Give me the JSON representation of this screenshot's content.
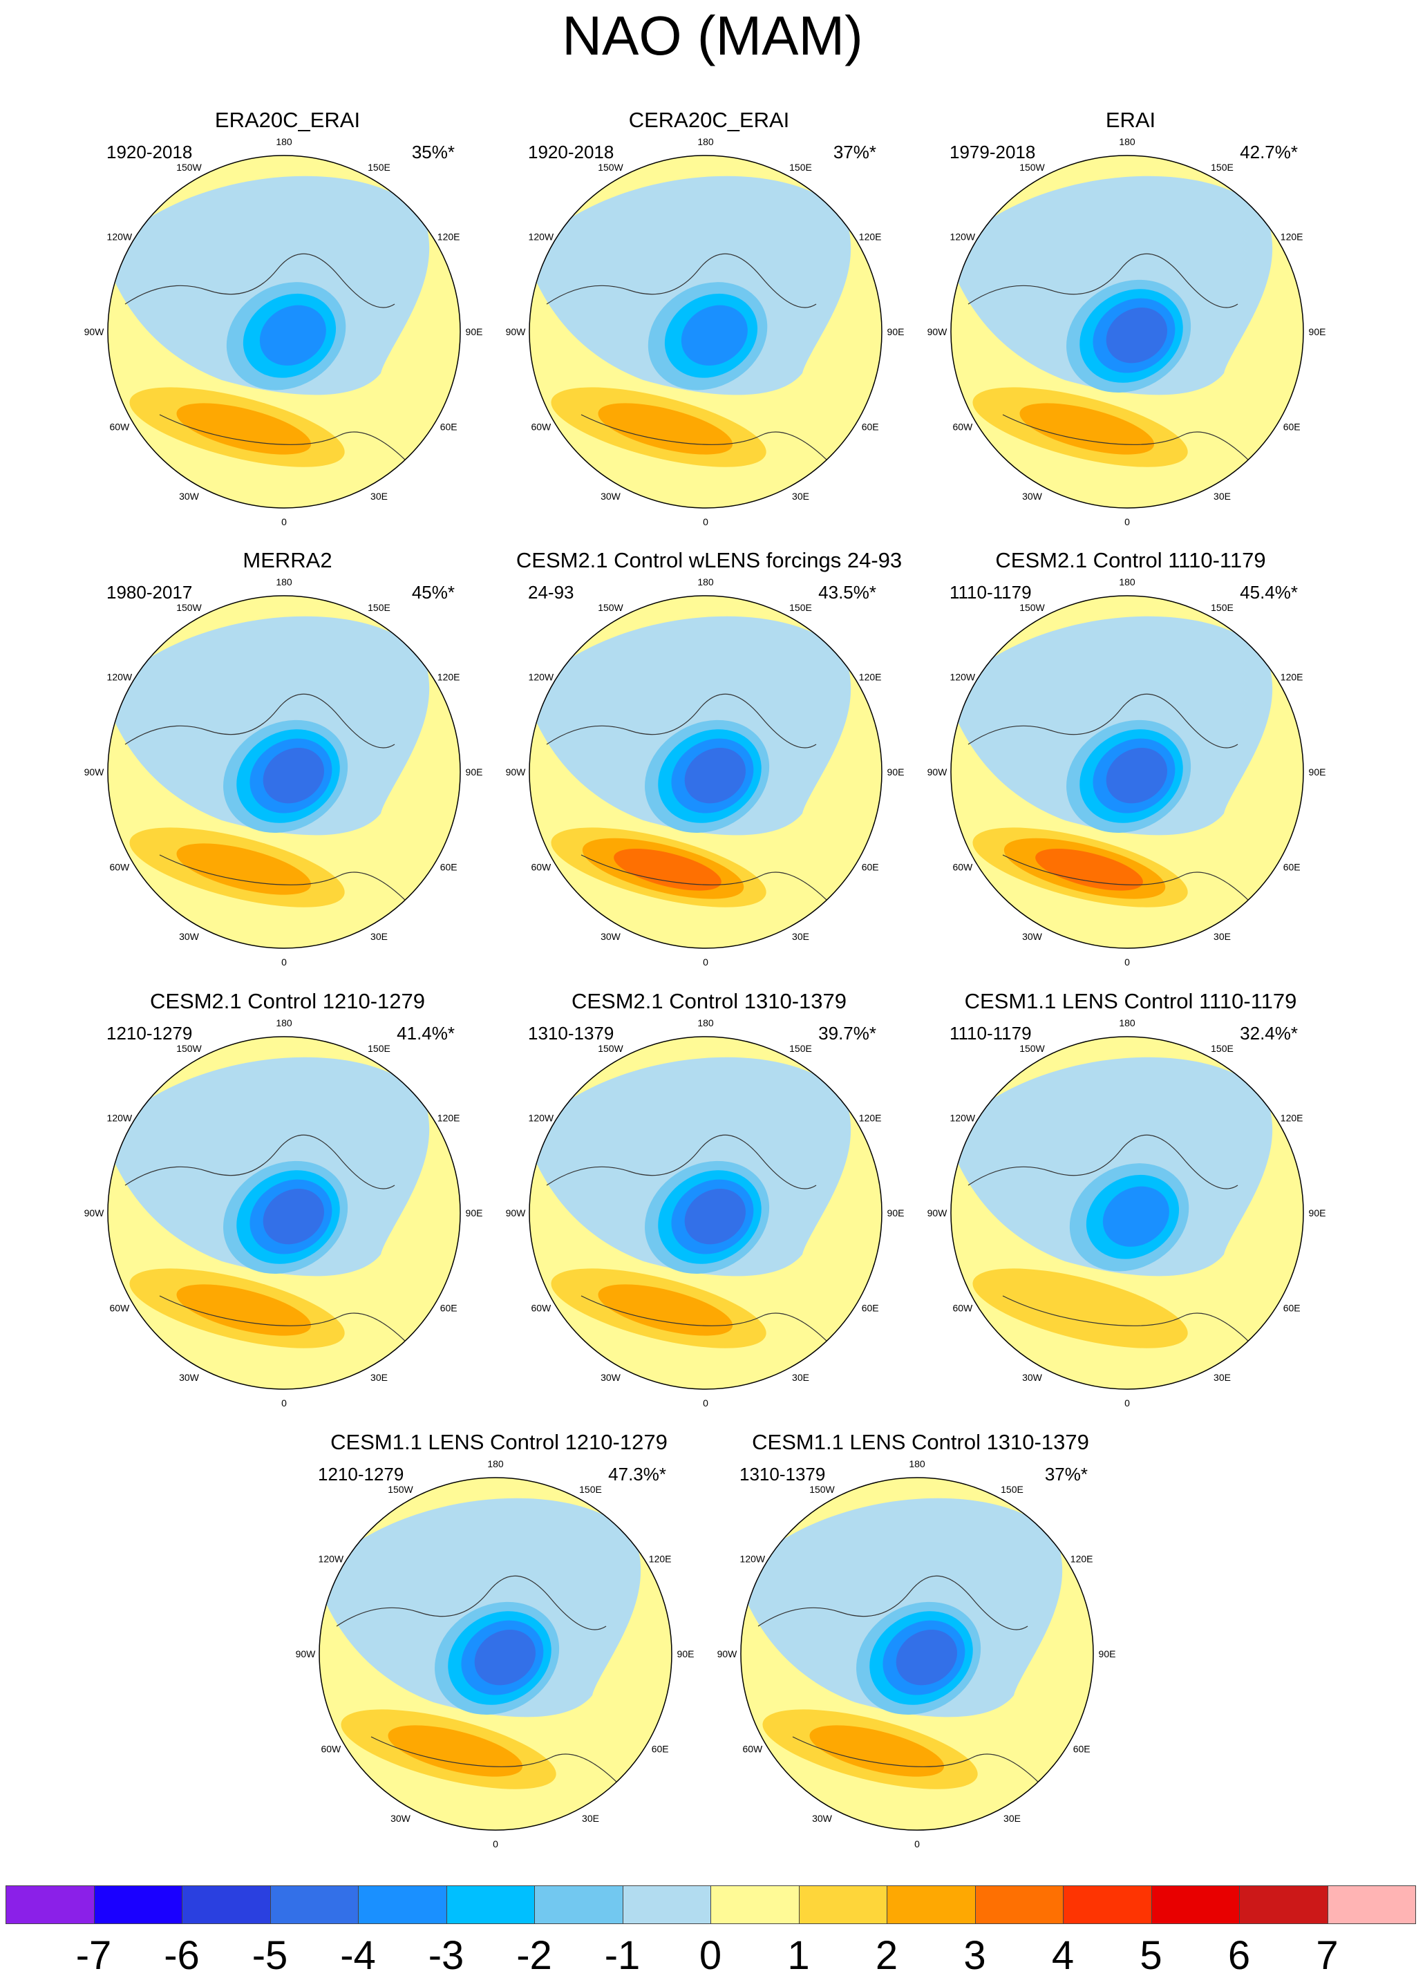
{
  "title": "NAO (MAM)",
  "chart_data": {
    "type": "polar-map",
    "projection": "north polar stereographic",
    "longitude_labels": [
      "180",
      "150E",
      "120E",
      "90E",
      "60E",
      "30E",
      "0",
      "30W",
      "60W",
      "90W",
      "120W",
      "150W"
    ],
    "panels": [
      {
        "title": "ERA20C_ERAI",
        "period": "1920-2018",
        "percent": "35%*",
        "low_peak": -4,
        "high_peak": 2
      },
      {
        "title": "CERA20C_ERAI",
        "period": "1920-2018",
        "percent": "37%*",
        "low_peak": -4,
        "high_peak": 2
      },
      {
        "title": "ERAI",
        "period": "1979-2018",
        "percent": "42.7%*",
        "low_peak": -5,
        "high_peak": 2
      },
      {
        "title": "MERRA2",
        "period": "1980-2017",
        "percent": "45%*",
        "low_peak": -5,
        "high_peak": 2
      },
      {
        "title": "CESM2.1 Control wLENS forcings 24-93",
        "period": "24-93",
        "percent": "43.5%*",
        "low_peak": -5,
        "high_peak": 3
      },
      {
        "title": "CESM2.1 Control 1110-1179",
        "period": "1110-1179",
        "percent": "45.4%*",
        "low_peak": -5,
        "high_peak": 3
      },
      {
        "title": "CESM2.1 Control 1210-1279",
        "period": "1210-1279",
        "percent": "41.4%*",
        "low_peak": -5,
        "high_peak": 2
      },
      {
        "title": "CESM2.1 Control 1310-1379",
        "period": "1310-1379",
        "percent": "39.7%*",
        "low_peak": -5,
        "high_peak": 2
      },
      {
        "title": "CESM1.1 LENS Control 1110-1179",
        "period": "1110-1179",
        "percent": "32.4%*",
        "low_peak": -4,
        "high_peak": 1
      },
      {
        "title": "CESM1.1 LENS Control 1210-1279",
        "period": "1210-1279",
        "percent": "47.3%*",
        "low_peak": -5,
        "high_peak": 2
      },
      {
        "title": "CESM1.1 LENS Control 1310-1379",
        "period": "1310-1379",
        "percent": "37%*",
        "low_peak": -5,
        "high_peak": 2
      }
    ],
    "colorbar": {
      "labels": [
        "-7",
        "-6",
        "-5",
        "-4",
        "-3",
        "-2",
        "-1",
        "0",
        "1",
        "2",
        "3",
        "4",
        "5",
        "6",
        "7"
      ],
      "colors": [
        "#8b20e8",
        "#1a00ff",
        "#2a40e0",
        "#3370e8",
        "#1a90ff",
        "#00bfff",
        "#72c8f0",
        "#b2dcf0",
        "#fffa96",
        "#fed63a",
        "#fea802",
        "#fe7002",
        "#fe3402",
        "#e80000",
        "#cc1818",
        "#ffb4b4"
      ]
    }
  }
}
